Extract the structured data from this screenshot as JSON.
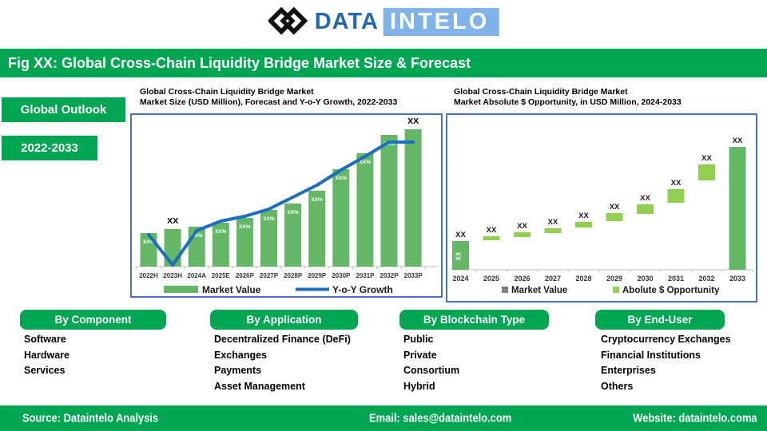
{
  "brand": {
    "name_left": "DATA",
    "name_right": "INTELO"
  },
  "title_bar": {
    "text": "Fig XX: Global Cross-Chain Liquidity Bridge Market Size & Forecast"
  },
  "side_labels": {
    "outlook": "Global Outlook",
    "period": "2022-2033"
  },
  "chart_data": [
    {
      "id": "market-size-forecast",
      "type": "bar",
      "subtype": "bar+line combo",
      "title": [
        "Global Cross-Chain Liquidity Bridge Market",
        "Market Size (USD Million), Forecast and Y-o-Y Growth, 2022-2033"
      ],
      "categories": [
        "2022H",
        "2023H",
        "2024A",
        "2025E",
        "2026P",
        "2027P",
        "2028P",
        "2029P",
        "2030P",
        "2031P",
        "2032P",
        "2033P"
      ],
      "bar_series": {
        "name": "Market Value",
        "unit": "USD Million",
        "value_labels": [
          "XX%",
          "",
          "XX%",
          "XX%",
          "XX%",
          "XX%",
          "XX%",
          "XX%",
          "XX%",
          "XX%",
          "XX%",
          ""
        ],
        "heights_rel": [
          42,
          47,
          50,
          55,
          61,
          71,
          79,
          95,
          122,
          142,
          165,
          172
        ]
      },
      "line_series": {
        "name": "Y-o-Y Growth",
        "heights_rel": [
          40,
          2,
          45,
          57,
          63,
          72,
          87,
          102,
          121,
          138,
          156,
          156
        ]
      },
      "point_callouts": [
        {
          "category": "2023H",
          "text": "XX"
        },
        {
          "category": "2033P",
          "text": "XX"
        }
      ],
      "legend": [
        "Market Value",
        "Y-o-Y Growth"
      ],
      "legend_position": "bottom",
      "y_axis_visible": false,
      "grid": false
    },
    {
      "id": "absolute-opportunity",
      "type": "bar",
      "subtype": "waterfall",
      "title": [
        "Global Cross-Chain Liquidity Bridge Market",
        "Market Absolute $ Opportunity, in USD Million, 2024-2033"
      ],
      "categories": [
        "2024",
        "2025",
        "2026",
        "2027",
        "2028",
        "2029",
        "2030",
        "2031",
        "2032",
        "2033"
      ],
      "bars": [
        {
          "year": "2024",
          "kind": "column",
          "bottom_rel": 0,
          "top_rel": 36,
          "label_above": "XX",
          "label_inside": "XX"
        },
        {
          "year": "2025",
          "kind": "step",
          "bottom_rel": 37,
          "top_rel": 42,
          "label_above": "XX"
        },
        {
          "year": "2026",
          "kind": "step",
          "bottom_rel": 41,
          "top_rel": 47,
          "label_above": "XX"
        },
        {
          "year": "2027",
          "kind": "step",
          "bottom_rel": 46,
          "top_rel": 52,
          "label_above": "XX"
        },
        {
          "year": "2028",
          "kind": "step",
          "bottom_rel": 53,
          "top_rel": 60,
          "label_above": "XX"
        },
        {
          "year": "2029",
          "kind": "step",
          "bottom_rel": 61,
          "top_rel": 71,
          "label_above": "XX"
        },
        {
          "year": "2030",
          "kind": "step",
          "bottom_rel": 70,
          "top_rel": 82,
          "label_above": "XX"
        },
        {
          "year": "2031",
          "kind": "step",
          "bottom_rel": 84,
          "top_rel": 101,
          "label_above": "XX"
        },
        {
          "year": "2032",
          "kind": "step",
          "bottom_rel": 112,
          "top_rel": 132,
          "label_above": "XX"
        },
        {
          "year": "2033",
          "kind": "column",
          "bottom_rel": 0,
          "top_rel": 154,
          "label_above": "XX"
        }
      ],
      "legend": [
        {
          "label": "Market Value",
          "swatch": "legend_gray"
        },
        {
          "label": "Abolute $ Opportunity",
          "swatch": "light_green"
        }
      ],
      "legend_position": "bottom",
      "y_axis_visible": false,
      "grid": false
    }
  ],
  "segments": [
    {
      "header": "By Component",
      "items": [
        "Software",
        "Hardware",
        "Services"
      ]
    },
    {
      "header": "By Application",
      "items": [
        "Decentralized Finance (DeFi)",
        "Exchanges",
        "Payments",
        "Asset Management"
      ]
    },
    {
      "header": "By Blockchain Type",
      "items": [
        "Public",
        "Private",
        "Consortium",
        "Hybrid"
      ]
    },
    {
      "header": "By End-User",
      "items": [
        "Cryptocurrency Exchanges",
        "Financial Institutions",
        "Enterprises",
        "Others"
      ]
    }
  ],
  "footer": {
    "source": "Source: Dataintelo  Analysis",
    "email": "Email: sales@dataintelo.com",
    "website": "Website:  dataintelo.coma"
  },
  "colors": {
    "green": "#00A651",
    "bar_green": "#63B765",
    "light_green": "#92D050",
    "line_blue": "#1D6EC0",
    "border_blue": "#4472C4",
    "legend_gray": "#7F7F7F",
    "logo_blue": "#2269B5",
    "logo_light": "#7FB3E9",
    "axis_gray": "#BFBFBF",
    "label_dark": "#333333"
  }
}
